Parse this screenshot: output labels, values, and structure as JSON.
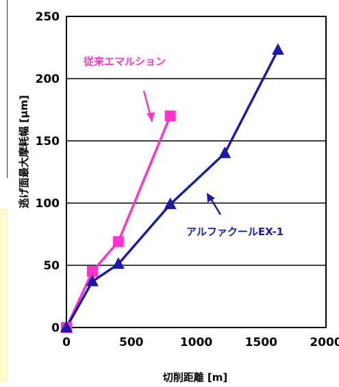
{
  "chart_data": {
    "type": "line",
    "xlabel": "切削距離 [m]",
    "ylabel": "逃げ面最大摩耗幅 [μm]",
    "xlim": [
      0,
      2000
    ],
    "ylim": [
      0,
      250
    ],
    "xticks": [
      "0",
      "500",
      "1000",
      "1500",
      "2000"
    ],
    "yticks": [
      "0",
      "50",
      "100",
      "150",
      "200",
      "250"
    ],
    "grid": "horizontal",
    "series": [
      {
        "name": "従来エマルション",
        "color": "#ff33cc",
        "marker": "square",
        "x": [
          0,
          200,
          400,
          800
        ],
        "y": [
          0,
          45,
          69,
          170
        ]
      },
      {
        "name": "アルファクールEX-1",
        "color": "#1a1aaa",
        "marker": "triangle",
        "x": [
          0,
          200,
          400,
          800,
          1220,
          1630
        ],
        "y": [
          0,
          37,
          51,
          99,
          140,
          223
        ]
      }
    ]
  }
}
